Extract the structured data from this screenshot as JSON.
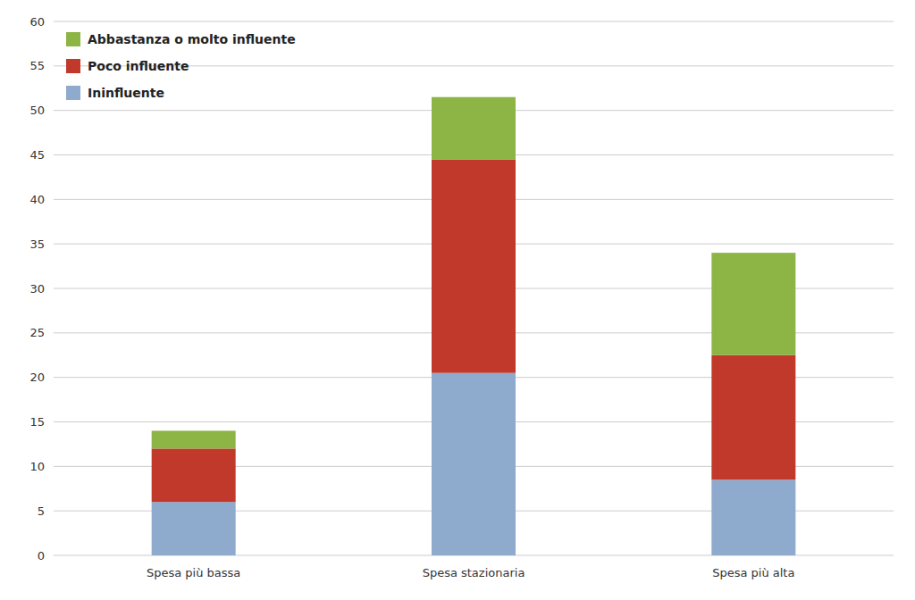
{
  "chart_data": {
    "type": "bar",
    "stacked": true,
    "categories": [
      "Spesa più bassa",
      "Spesa stazionaria",
      "Spesa più alta"
    ],
    "series": [
      {
        "name": "Ininfluente",
        "color": "#8eaacc",
        "values": [
          6,
          20.5,
          8.5
        ]
      },
      {
        "name": "Poco influente",
        "color": "#c0392b",
        "values": [
          6,
          24,
          14
        ]
      },
      {
        "name": "Abbastanza o molto influente",
        "color": "#8db545",
        "values": [
          2,
          7,
          11.5
        ]
      }
    ],
    "ylim": [
      0,
      60
    ],
    "yticks": [
      0,
      5,
      10,
      15,
      20,
      25,
      30,
      35,
      40,
      45,
      50,
      55,
      60
    ],
    "grid": true,
    "legend": "upper left"
  }
}
